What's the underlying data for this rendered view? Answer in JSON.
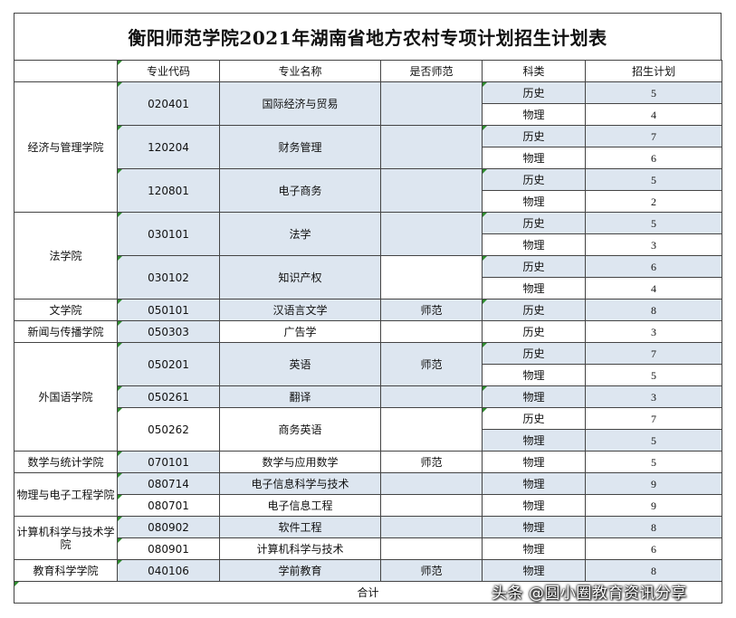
{
  "title": "衡阳师范学院2021年湖南省地方农村专项计划招生计划表",
  "headers": {
    "code": "专业代码",
    "name": "专业名称",
    "normal": "是否师范",
    "subject": "科类",
    "plan": "招生计划"
  },
  "colleges": {
    "econ": "经济与管理学院",
    "law": "法学院",
    "lit": "文学院",
    "news": "新闻与传播学院",
    "foreign": "外国语学院",
    "math": "数学与统计学院",
    "phys": "物理与电子工程学院",
    "cs": "计算机科学与技术学院",
    "edu": "教育科学学院"
  },
  "majors": [
    {
      "code": "020401",
      "name": "国际经济与贸易",
      "normal": ""
    },
    {
      "code": "120204",
      "name": "财务管理",
      "normal": ""
    },
    {
      "code": "120801",
      "name": "电子商务",
      "normal": ""
    },
    {
      "code": "030101",
      "name": "法学",
      "normal": ""
    },
    {
      "code": "030102",
      "name": "知识产权",
      "normal": ""
    },
    {
      "code": "050101",
      "name": "汉语言文学",
      "normal": "师范"
    },
    {
      "code": "050303",
      "name": "广告学",
      "normal": ""
    },
    {
      "code": "050201",
      "name": "英语",
      "normal": "师范"
    },
    {
      "code": "050261",
      "name": "翻译",
      "normal": ""
    },
    {
      "code": "050262",
      "name": "商务英语",
      "normal": ""
    },
    {
      "code": "070101",
      "name": "数学与应用数学",
      "normal": "师范"
    },
    {
      "code": "080714",
      "name": "电子信息科学与技术",
      "normal": ""
    },
    {
      "code": "080701",
      "name": "电子信息工程",
      "normal": ""
    },
    {
      "code": "080902",
      "name": "软件工程",
      "normal": ""
    },
    {
      "code": "080901",
      "name": "计算机科学与技术",
      "normal": ""
    },
    {
      "code": "040106",
      "name": "学前教育",
      "normal": "师范"
    }
  ],
  "rows": [
    {
      "subject": "历史",
      "plan": "5"
    },
    {
      "subject": "物理",
      "plan": "4"
    },
    {
      "subject": "历史",
      "plan": "7"
    },
    {
      "subject": "物理",
      "plan": "6"
    },
    {
      "subject": "历史",
      "plan": "5"
    },
    {
      "subject": "物理",
      "plan": "2"
    },
    {
      "subject": "历史",
      "plan": "5"
    },
    {
      "subject": "物理",
      "plan": "3"
    },
    {
      "subject": "历史",
      "plan": "6"
    },
    {
      "subject": "物理",
      "plan": "4"
    },
    {
      "subject": "历史",
      "plan": "8"
    },
    {
      "subject": "历史",
      "plan": "3"
    },
    {
      "subject": "历史",
      "plan": "7"
    },
    {
      "subject": "物理",
      "plan": "5"
    },
    {
      "subject": "物理",
      "plan": "3"
    },
    {
      "subject": "历史",
      "plan": "7"
    },
    {
      "subject": "物理",
      "plan": "5"
    },
    {
      "subject": "物理",
      "plan": "5"
    },
    {
      "subject": "物理",
      "plan": "9"
    },
    {
      "subject": "物理",
      "plan": "9"
    },
    {
      "subject": "物理",
      "plan": "8"
    },
    {
      "subject": "物理",
      "plan": "6"
    },
    {
      "subject": "物理",
      "plan": "8"
    }
  ],
  "total_label": "合计",
  "watermark": "头条 @圆小圈教育资讯分享"
}
